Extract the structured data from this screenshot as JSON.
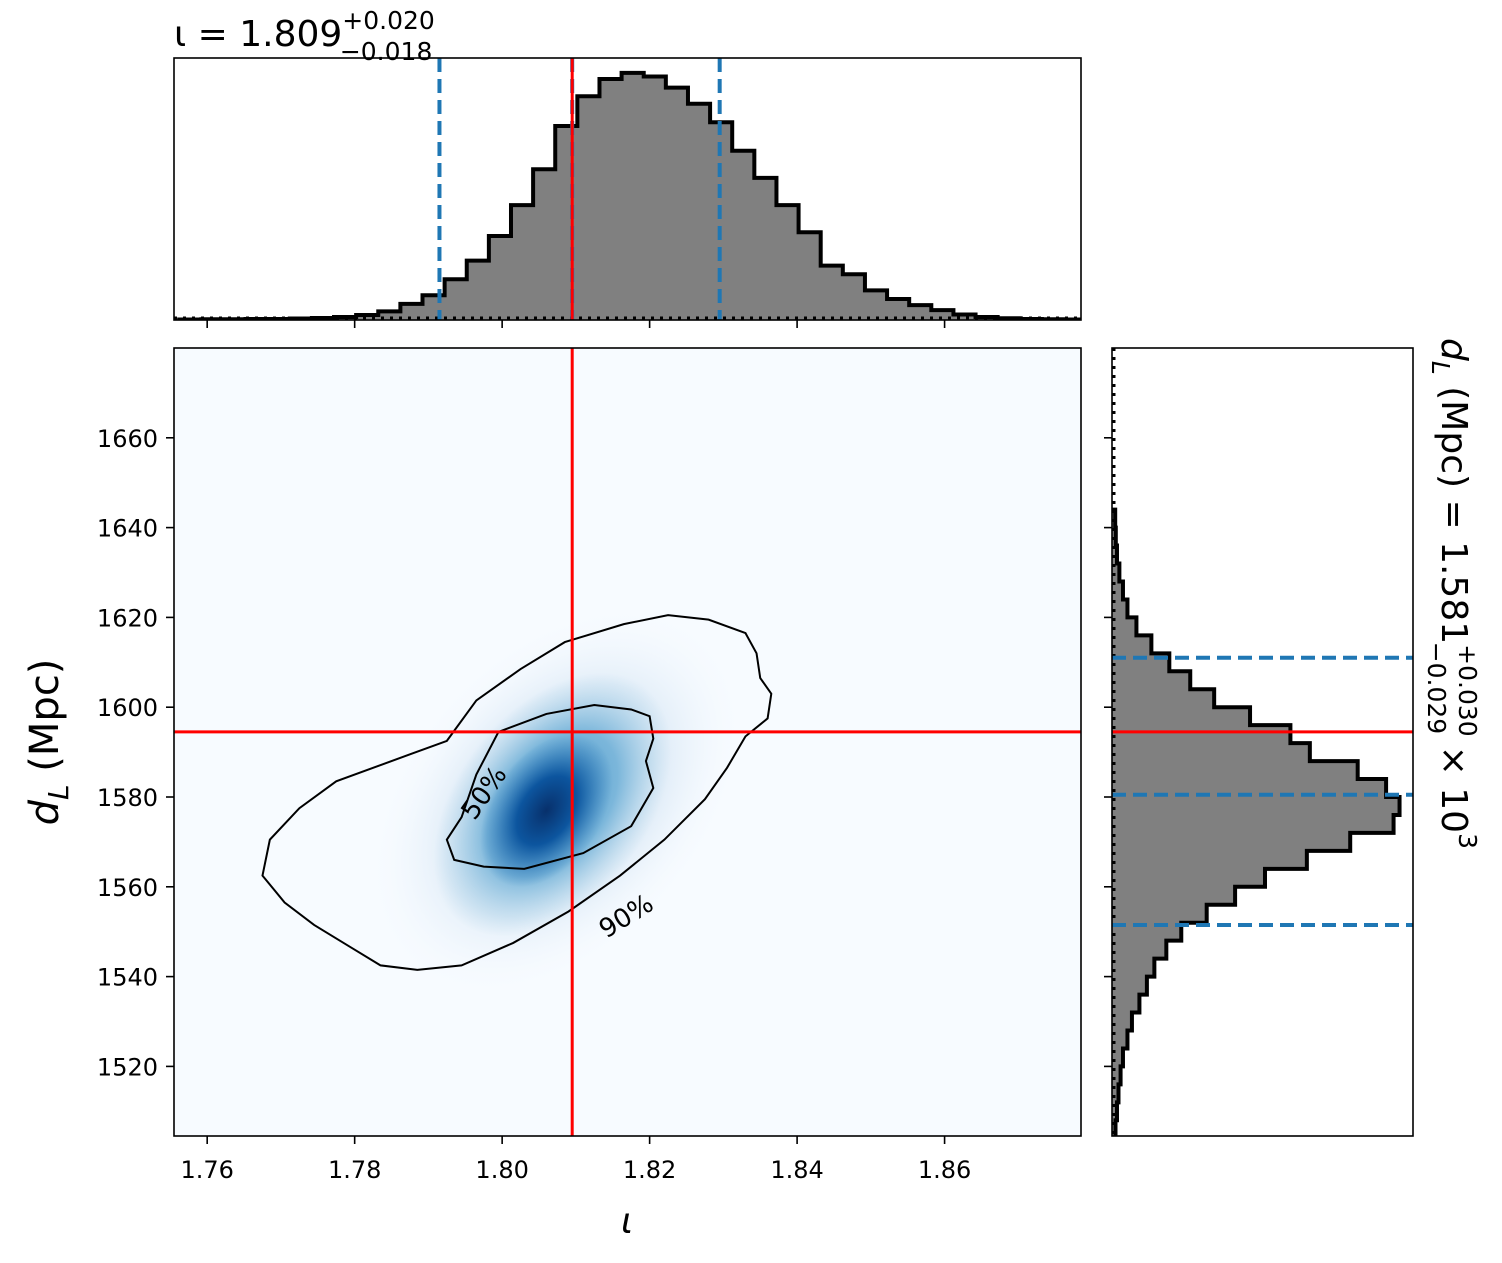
{
  "chart_data": [
    {
      "type": "bar",
      "panel": "iota-marginal-histogram",
      "xlim": [
        1.7555,
        1.8785
      ],
      "bins": [
        {
          "x": 1.7577,
          "y": 0.002
        },
        {
          "x": 1.7607,
          "y": 0.003
        },
        {
          "x": 1.7637,
          "y": 0.003
        },
        {
          "x": 1.7667,
          "y": 0.004
        },
        {
          "x": 1.7697,
          "y": 0.004
        },
        {
          "x": 1.7727,
          "y": 0.006
        },
        {
          "x": 1.7757,
          "y": 0.008
        },
        {
          "x": 1.7787,
          "y": 0.012
        },
        {
          "x": 1.7817,
          "y": 0.02
        },
        {
          "x": 1.7847,
          "y": 0.035
        },
        {
          "x": 1.7877,
          "y": 0.065
        },
        {
          "x": 1.7907,
          "y": 0.1
        },
        {
          "x": 1.7937,
          "y": 0.165
        },
        {
          "x": 1.7967,
          "y": 0.24
        },
        {
          "x": 1.7997,
          "y": 0.34
        },
        {
          "x": 1.8027,
          "y": 0.465
        },
        {
          "x": 1.8057,
          "y": 0.61
        },
        {
          "x": 1.8087,
          "y": 0.785
        },
        {
          "x": 1.8117,
          "y": 0.905
        },
        {
          "x": 1.8147,
          "y": 0.975
        },
        {
          "x": 1.8177,
          "y": 1.0
        },
        {
          "x": 1.8207,
          "y": 0.985
        },
        {
          "x": 1.8237,
          "y": 0.94
        },
        {
          "x": 1.8267,
          "y": 0.875
        },
        {
          "x": 1.8297,
          "y": 0.8
        },
        {
          "x": 1.8327,
          "y": 0.685
        },
        {
          "x": 1.8357,
          "y": 0.575
        },
        {
          "x": 1.8387,
          "y": 0.465
        },
        {
          "x": 1.8417,
          "y": 0.355
        },
        {
          "x": 1.8447,
          "y": 0.22
        },
        {
          "x": 1.8477,
          "y": 0.185
        },
        {
          "x": 1.8507,
          "y": 0.12
        },
        {
          "x": 1.8537,
          "y": 0.085
        },
        {
          "x": 1.8567,
          "y": 0.06
        },
        {
          "x": 1.8597,
          "y": 0.04
        },
        {
          "x": 1.8627,
          "y": 0.022
        },
        {
          "x": 1.8657,
          "y": 0.012
        },
        {
          "x": 1.8687,
          "y": 0.007
        },
        {
          "x": 1.8717,
          "y": 0.004
        },
        {
          "x": 1.8747,
          "y": 0.003
        },
        {
          "x": 1.8777,
          "y": 0.002
        }
      ],
      "ylim": [
        0,
        1.06
      ],
      "quantile_lines": [
        1.7915,
        1.8095,
        1.8295
      ],
      "truth": 1.8095,
      "title": "ι = 1.809",
      "title_sup": "+0.020",
      "title_sub": "−0.018"
    },
    {
      "type": "heatmap",
      "panel": "joint-posterior",
      "xlim": [
        1.7555,
        1.8785
      ],
      "ylim": [
        1504.5,
        1680
      ],
      "xticks": [
        "1.76",
        "1.78",
        "1.80",
        "1.82",
        "1.84",
        "1.86"
      ],
      "xtick_values": [
        1.76,
        1.78,
        1.8,
        1.82,
        1.84,
        1.86
      ],
      "yticks": [
        "1520",
        "1540",
        "1560",
        "1580",
        "1600",
        "1620",
        "1640",
        "1660"
      ],
      "ytick_values": [
        1520,
        1540,
        1560,
        1580,
        1600,
        1620,
        1640,
        1660
      ],
      "xlabel": "ι",
      "ylabel_var": "d",
      "ylabel_sub": "L",
      "ylabel_unit": " (Mpc)",
      "peak": {
        "x": 1.806,
        "y": 1577
      },
      "truth": {
        "x": 1.8095,
        "y": 1594.5
      },
      "contour_labels": [
        "50%",
        "90%"
      ],
      "contour_50": [
        [
          1.7995,
          1.5945
        ],
        [
          1.806,
          1.5985
        ],
        [
          1.8125,
          1.6005
        ],
        [
          1.8175,
          1.5995
        ],
        [
          1.82,
          1.598
        ],
        [
          1.8205,
          1.593
        ],
        [
          1.8195,
          1.588
        ],
        [
          1.8205,
          1.582
        ],
        [
          1.8175,
          1.5735
        ],
        [
          1.811,
          1.5675
        ],
        [
          1.803,
          1.564
        ],
        [
          1.7975,
          1.5645
        ],
        [
          1.7935,
          1.566
        ],
        [
          1.7925,
          1.5705
        ],
        [
          1.7945,
          1.5755
        ],
        [
          1.7965,
          1.585
        ],
        [
          1.7995,
          1.5945
        ]
      ],
      "contour_90": [
        [
          1.7925,
          1.5925
        ],
        [
          1.7965,
          1.6015
        ],
        [
          1.8025,
          1.6085
        ],
        [
          1.8085,
          1.6145
        ],
        [
          1.8165,
          1.6185
        ],
        [
          1.8225,
          1.6205
        ],
        [
          1.828,
          1.6195
        ],
        [
          1.833,
          1.6165
        ],
        [
          1.8345,
          1.612
        ],
        [
          1.835,
          1.6065
        ],
        [
          1.8365,
          1.603
        ],
        [
          1.836,
          1.5975
        ],
        [
          1.833,
          1.5935
        ],
        [
          1.8305,
          1.5865
        ],
        [
          1.8275,
          1.5795
        ],
        [
          1.822,
          1.5705
        ],
        [
          1.816,
          1.5625
        ],
        [
          1.809,
          1.5545
        ],
        [
          1.8015,
          1.5475
        ],
        [
          1.7945,
          1.5425
        ],
        [
          1.7885,
          1.5415
        ],
        [
          1.7835,
          1.5425
        ],
        [
          1.7795,
          1.5465
        ],
        [
          1.7745,
          1.5515
        ],
        [
          1.7705,
          1.5565
        ],
        [
          1.7675,
          1.5625
        ],
        [
          1.7685,
          1.5705
        ],
        [
          1.7725,
          1.5775
        ],
        [
          1.7775,
          1.5835
        ],
        [
          1.7825,
          1.5865
        ],
        [
          1.7875,
          1.5895
        ],
        [
          1.7925,
          1.5925
        ]
      ]
    },
    {
      "type": "bar",
      "panel": "dL-marginal-histogram",
      "orientation": "horizontal",
      "ylim": [
        1504.5,
        1680
      ],
      "bins": [
        {
          "y": 1506,
          "x": 0.005
        },
        {
          "y": 1510,
          "x": 0.01
        },
        {
          "y": 1514,
          "x": 0.015
        },
        {
          "y": 1518,
          "x": 0.022
        },
        {
          "y": 1522,
          "x": 0.03
        },
        {
          "y": 1526,
          "x": 0.045
        },
        {
          "y": 1530,
          "x": 0.06
        },
        {
          "y": 1534,
          "x": 0.085
        },
        {
          "y": 1538,
          "x": 0.11
        },
        {
          "y": 1542,
          "x": 0.135
        },
        {
          "y": 1546,
          "x": 0.175
        },
        {
          "y": 1550,
          "x": 0.225
        },
        {
          "y": 1554,
          "x": 0.31
        },
        {
          "y": 1558,
          "x": 0.405
        },
        {
          "y": 1562,
          "x": 0.505
        },
        {
          "y": 1566,
          "x": 0.645
        },
        {
          "y": 1570,
          "x": 0.79
        },
        {
          "y": 1574,
          "x": 0.935
        },
        {
          "y": 1578,
          "x": 0.955
        },
        {
          "y": 1582,
          "x": 0.91
        },
        {
          "y": 1586,
          "x": 0.815
        },
        {
          "y": 1590,
          "x": 0.655
        },
        {
          "y": 1594,
          "x": 0.59
        },
        {
          "y": 1598,
          "x": 0.455
        },
        {
          "y": 1602,
          "x": 0.335
        },
        {
          "y": 1606,
          "x": 0.255
        },
        {
          "y": 1610,
          "x": 0.185
        },
        {
          "y": 1614,
          "x": 0.125
        },
        {
          "y": 1618,
          "x": 0.075
        },
        {
          "y": 1622,
          "x": 0.045
        },
        {
          "y": 1626,
          "x": 0.03
        },
        {
          "y": 1630,
          "x": 0.018
        },
        {
          "y": 1634,
          "x": 0.01
        },
        {
          "y": 1638,
          "x": 0.006
        },
        {
          "y": 1642,
          "x": 0.004
        }
      ],
      "xlim": [
        0,
        1.0
      ],
      "quantile_lines": [
        1551.5,
        1580.5,
        1611
      ],
      "truth": 1594.5,
      "title_var": "d",
      "title_var_sub": "L",
      "title_main": " (Mpc) = 1.581",
      "title_sup": "+0.030",
      "title_sub": "−0.029",
      "title_tail": " × 10",
      "title_exp": "3"
    }
  ]
}
